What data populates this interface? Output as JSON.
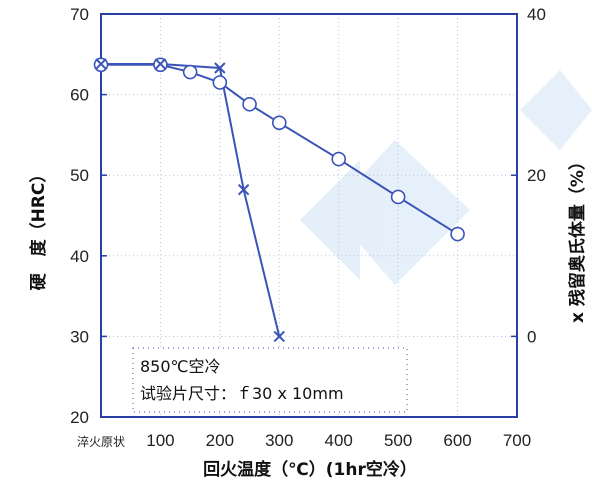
{
  "chart_data": {
    "type": "line",
    "xlabel": "回火温度（℃）(1hr空冷）",
    "ylabel_left": "硬　度（HRC）",
    "ylabel_right": "x 残留奥氏体量（%）",
    "x_ticks": [
      "淬火原状",
      "100",
      "200",
      "300",
      "400",
      "500",
      "600",
      "700"
    ],
    "xlim": [
      0,
      700
    ],
    "ylim_left": [
      20,
      70
    ],
    "y_ticks_left": [
      "20",
      "30",
      "40",
      "50",
      "60",
      "70"
    ],
    "ylim_right": [
      -10,
      40
    ],
    "y_ticks_right": [
      "0",
      "20",
      "40"
    ],
    "grid": true,
    "series": [
      {
        "marker": "circle",
        "axis": "left",
        "x": [
          0,
          100,
          150,
          200,
          250,
          300,
          400,
          500,
          600
        ],
        "y": [
          63.7,
          63.7,
          62.8,
          61.5,
          58.8,
          56.5,
          52.0,
          47.3,
          42.7
        ]
      },
      {
        "marker": "x",
        "axis": "right",
        "x": [
          0,
          100,
          200,
          240,
          300
        ],
        "y": [
          33.8,
          33.8,
          33.3,
          18.2,
          0
        ]
      }
    ],
    "annotations": [
      "850℃空冷",
      "试验片尺寸：ｆ30 x 10mm"
    ],
    "colors": {
      "line": "#3a54b8",
      "frame": "#2a3fa6",
      "watermark": "#2f84d8"
    }
  }
}
